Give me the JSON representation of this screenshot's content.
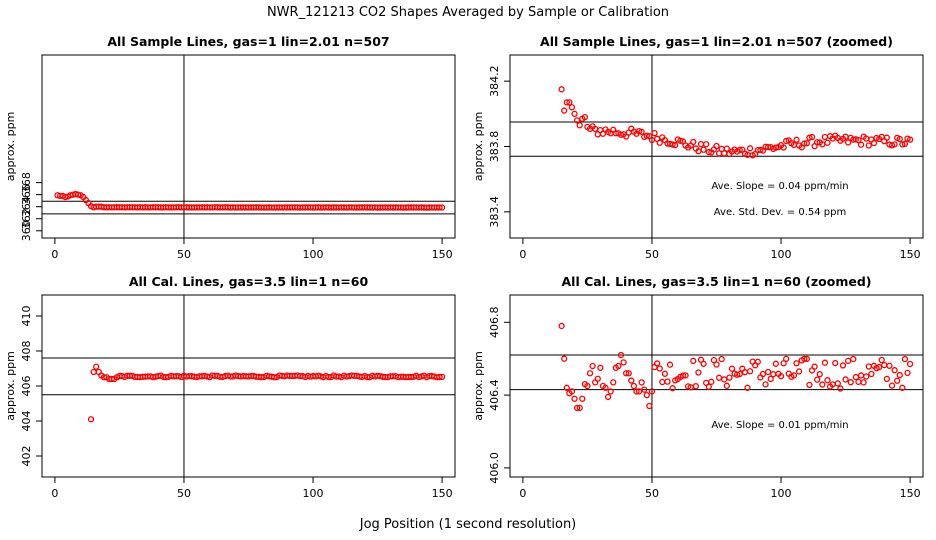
{
  "title": "NWR_121213  CO2 Shapes Averaged by Sample or Calibration",
  "x_axis_title": "Jog Position (1 second resolution)",
  "chart_data": [
    {
      "type": "scatter",
      "title": "All Sample Lines, gas=1 lin=2.01 n=507",
      "ylabel": "approx. ppm",
      "xlim": [
        -5,
        155
      ],
      "ylim": [
        358.8,
        389.2
      ],
      "xticks": [
        0,
        50,
        100,
        150
      ],
      "yticks": [
        360,
        362,
        364,
        366,
        368
      ],
      "vline": 50,
      "hlines": [
        362.8,
        364.9
      ],
      "annotations": [],
      "color": "#ff0000",
      "segments": [
        {
          "x": [
            1,
            2,
            3,
            4,
            5,
            6,
            7,
            8,
            9,
            10,
            11,
            12,
            13,
            14,
            15,
            16,
            17,
            18,
            19,
            20
          ],
          "y": [
            365.9,
            365.8,
            365.8,
            365.6,
            365.7,
            365.9,
            366.0,
            366.1,
            366.0,
            365.9,
            365.6,
            365.1,
            364.6,
            364.1,
            363.9,
            364.0,
            364.0,
            364.0,
            363.9,
            363.9
          ]
        },
        {
          "from": 21,
          "to": 150,
          "base": 363.9,
          "amp": 0.02,
          "slope": -0.0003
        }
      ]
    },
    {
      "type": "scatter",
      "title": "All Sample Lines, gas=1 lin=2.01 n=507 (zoomed)",
      "ylabel": "approx. ppm",
      "xlim": [
        -5,
        155
      ],
      "ylim": [
        383.24,
        384.36
      ],
      "xticks": [
        0,
        50,
        100,
        150
      ],
      "yticks": [
        383.4,
        383.8,
        384.2
      ],
      "vline": 50,
      "hlines": [
        383.74,
        383.95
      ],
      "annotations": [
        "Ave. Slope =  0.04  ppm/min",
        "Ave. Std. Dev. =  0.54  ppm"
      ],
      "color": "#ff0000",
      "segments": [
        {
          "x": [
            15,
            16,
            17,
            18,
            19,
            20,
            21,
            22,
            23,
            24,
            25
          ],
          "y": [
            384.15,
            384.02,
            384.07,
            384.07,
            384.04,
            384.0,
            383.96,
            383.93,
            383.97,
            383.98,
            383.92
          ]
        },
        {
          "from": 26,
          "to": 150,
          "base": 383.9,
          "amp": 0.03,
          "slope": -0.0006,
          "dip": [
            80,
            383.8,
            25
          ]
        }
      ]
    },
    {
      "type": "scatter",
      "title": "All Cal. Lines, gas=3.5 lin=1 n=60",
      "ylabel": "approx. ppm",
      "xlim": [
        -5,
        155
      ],
      "ylim": [
        400.8,
        411.2
      ],
      "xticks": [
        0,
        50,
        100,
        150
      ],
      "yticks": [
        402,
        404,
        406,
        408,
        410
      ],
      "vline": 50,
      "hlines": [
        405.5,
        407.6
      ],
      "annotations": [],
      "color": "#ff0000",
      "segments": [
        {
          "x": [
            14,
            15,
            16,
            17,
            18,
            19,
            20,
            21,
            22,
            23,
            24
          ],
          "y": [
            404.1,
            406.8,
            407.1,
            406.8,
            406.6,
            406.5,
            406.5,
            406.4,
            406.4,
            406.4,
            406.5
          ]
        },
        {
          "from": 25,
          "to": 150,
          "base": 406.55,
          "amp": 0.05,
          "slope": 0.0
        }
      ]
    },
    {
      "type": "scatter",
      "title": "All Cal. Lines, gas=3.5 lin=1 n=60 (zoomed)",
      "ylabel": "approx. ppm",
      "xlim": [
        -5,
        155
      ],
      "ylim": [
        405.95,
        406.95
      ],
      "xticks": [
        0,
        50,
        100,
        150
      ],
      "yticks": [
        406.0,
        406.4,
        406.8
      ],
      "vline": 50,
      "hlines": [
        406.43,
        406.62
      ],
      "annotations": [
        "Ave. Slope =  0.01  ppm/min"
      ],
      "color": "#ff0000",
      "segments": [
        {
          "x": [
            15,
            16,
            17,
            18,
            19,
            20,
            21,
            22,
            23,
            24,
            25,
            26,
            27,
            28,
            29,
            30,
            31,
            32,
            33,
            34,
            35,
            36,
            37,
            38,
            39,
            40,
            41,
            42,
            43,
            44,
            45,
            46,
            47,
            48,
            49,
            50
          ],
          "y": [
            406.78,
            406.6,
            406.44,
            406.41,
            406.42,
            406.38,
            406.33,
            406.33,
            406.38,
            406.46,
            406.45,
            406.52,
            406.56,
            406.47,
            406.49,
            406.55,
            406.45,
            406.44,
            406.39,
            406.42,
            406.47,
            406.55,
            406.56,
            406.62,
            406.58,
            406.52,
            406.52,
            406.48,
            406.45,
            406.42,
            406.42,
            406.47,
            406.43,
            406.4,
            406.34,
            406.42
          ]
        },
        {
          "from": 51,
          "to": 150,
          "base": 406.52,
          "amp": 0.085,
          "slope": 0.0
        }
      ]
    }
  ]
}
